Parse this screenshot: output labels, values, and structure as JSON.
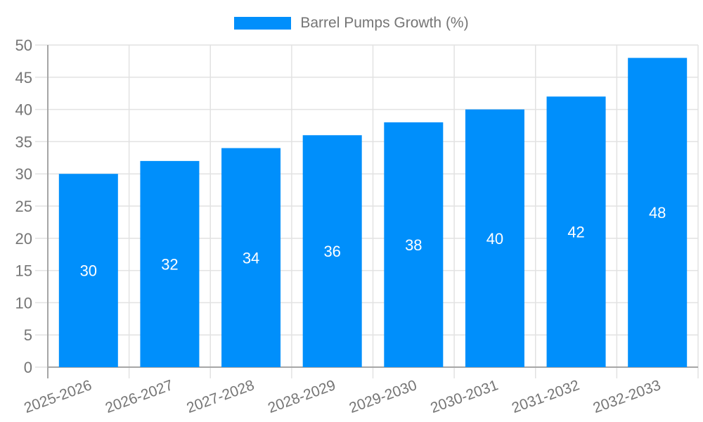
{
  "legend": {
    "label": "Barrel Pumps Growth (%)"
  },
  "chart_data": {
    "type": "bar",
    "title": "",
    "xlabel": "",
    "ylabel": "",
    "categories": [
      "2025-2026",
      "2026-2027",
      "2027-2028",
      "2028-2029",
      "2029-2030",
      "2030-2031",
      "2031-2032",
      "2032-2033"
    ],
    "values": [
      30,
      32,
      34,
      36,
      38,
      40,
      42,
      48
    ],
    "value_labels": [
      "30",
      "32",
      "34",
      "36",
      "38",
      "40",
      "42",
      "48"
    ],
    "value_labels_position": "inside-center",
    "ylim": [
      0,
      50
    ],
    "yticks": [
      0,
      5,
      10,
      15,
      20,
      25,
      30,
      35,
      40,
      45,
      50
    ],
    "grid": true,
    "legend_position": "top-center",
    "legend_entries": [
      {
        "label": "Barrel Pumps Growth (%)",
        "color": "#008FFB"
      }
    ],
    "series_color": "#008FFB",
    "style": {
      "bar_color": "#008FFB",
      "value_label_color": "#ffffff",
      "axis_label_color": "#757575",
      "grid_color": "#e2e2e2",
      "axis_line_color": "#a6a6a6",
      "background": "#ffffff",
      "x_label_rotation_deg": -20
    }
  }
}
